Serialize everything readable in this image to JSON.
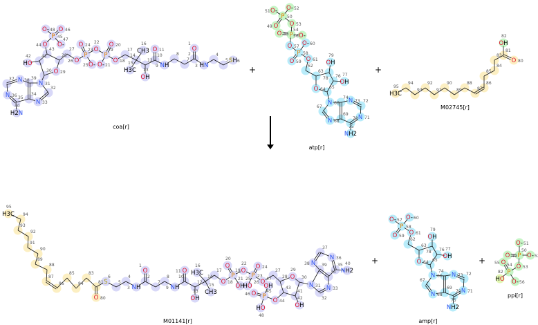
{
  "reaction": {
    "operators": [
      "+",
      "+",
      "+",
      "+"
    ],
    "arrow": "reaction-arrow-down"
  },
  "colors": {
    "coa_highlight": "#d8d8f8",
    "adenosine_highlight": "#b8ecfa",
    "phosphate_highlight": "#c6f5c6",
    "acyl_highlight": "#fcefc2",
    "water_highlight": "#e2f7b4",
    "oxygen": "#e0102a",
    "nitrogen": "#2a50f0",
    "phosphorus": "#e08000",
    "sulfur": "#a89a00"
  },
  "molecules": [
    {
      "id": "coa",
      "name": "coa[r]",
      "atoms": {
        "1": "O",
        "2": "",
        "3": "HN",
        "4": "",
        "5": "",
        "6": "SH",
        "7": "",
        "8": "",
        "9": "NH",
        "10": "",
        "11": "O",
        "12": "",
        "13": "OH",
        "14": "",
        "15": "H3C",
        "16": "CH3",
        "17": "",
        "18": "O",
        "19": "P",
        "20": "O",
        "21": "O-",
        "22": "O",
        "23": "P",
        "24": "O",
        "25": "O-",
        "26": "O",
        "27": "",
        "28": "",
        "29": "O",
        "30": "",
        "31": "N",
        "32": "",
        "33": "N",
        "34": "",
        "35": "",
        "36": "N",
        "37": "",
        "38": "N",
        "39": "",
        "40": "H2N",
        "41": "",
        "42": "HO",
        "43": "",
        "44": "O",
        "45": "P",
        "46": "O",
        "47": "O-",
        "48": "O-"
      }
    },
    {
      "id": "atp",
      "name": "atp[r]",
      "atoms": {
        "49": "O",
        "50": "P",
        "51": "O-",
        "52": "O-",
        "53": "O",
        "54": "P",
        "55": "O",
        "56": "O-",
        "57": "O",
        "58": "P",
        "59": "O",
        "60": "O-",
        "61": "O",
        "62": "",
        "63": "",
        "64": "O",
        "65": "",
        "66": "N",
        "67": "",
        "68": "N",
        "69": "",
        "70": "",
        "71": "N",
        "72": "",
        "73": "N",
        "74": "",
        "75": "NH2",
        "76": "",
        "77": "OH",
        "78": "",
        "79": "OH"
      }
    },
    {
      "id": "fa",
      "name": "M02745[r]",
      "atoms": {
        "80": "O",
        "81": "",
        "82": "OH",
        "83": "",
        "84": "",
        "85": "",
        "86": "",
        "87": "",
        "88": "",
        "89": "",
        "90": "",
        "91": "",
        "92": "",
        "93": "",
        "94": "",
        "95": "H3C"
      }
    },
    {
      "id": "prod",
      "name": "M01141[r]",
      "atoms": {
        "1": "O",
        "2": "",
        "3": "NH",
        "4": "",
        "5": "",
        "6": "S",
        "7": "",
        "8": "",
        "9": "NH",
        "10": "",
        "11": "O",
        "12": "",
        "13": "OH",
        "14": "",
        "15": "CH3",
        "16": "H3C",
        "17": "",
        "18": "O",
        "19": "P",
        "20": "O",
        "21": "OH",
        "22": "O",
        "23": "P",
        "24": "O",
        "25": "HO",
        "26": "O",
        "27": "",
        "28": "",
        "29": "O",
        "30": "",
        "31": "N",
        "32": "",
        "33": "N",
        "34": "",
        "35": "",
        "36": "N",
        "37": "",
        "38": "N",
        "39": "",
        "40": "NH2",
        "41": "",
        "42": "OH",
        "43": "",
        "44": "O",
        "45": "P",
        "46": "O",
        "47": "OH",
        "48": "HO",
        "80": "O",
        "81": "",
        "83": "",
        "84": "",
        "85": "",
        "86": "",
        "87": "",
        "88": "",
        "89": "",
        "90": "",
        "91": "",
        "92": "",
        "93": "",
        "94": "",
        "95": "H3C"
      }
    },
    {
      "id": "amp",
      "name": "amp[r]",
      "atoms": {
        "57": "O-",
        "58": "P",
        "59": "O",
        "60": "O-",
        "61": "O",
        "62": "",
        "63": "",
        "64": "O",
        "65": "",
        "66": "N",
        "67": "",
        "68": "N",
        "69": "",
        "70": "",
        "71": "N",
        "72": "",
        "73": "N",
        "74": "",
        "75": "NH2",
        "76": "",
        "77": "OH",
        "78": "",
        "79": "OH"
      }
    },
    {
      "id": "ppi",
      "name": "ppi[r]",
      "atoms": {
        "49": "O",
        "50": "P",
        "51": "O-",
        "52": "O-",
        "53": "O",
        "54": "P",
        "55": "O",
        "56": "O-",
        "82": "HO"
      }
    }
  ]
}
